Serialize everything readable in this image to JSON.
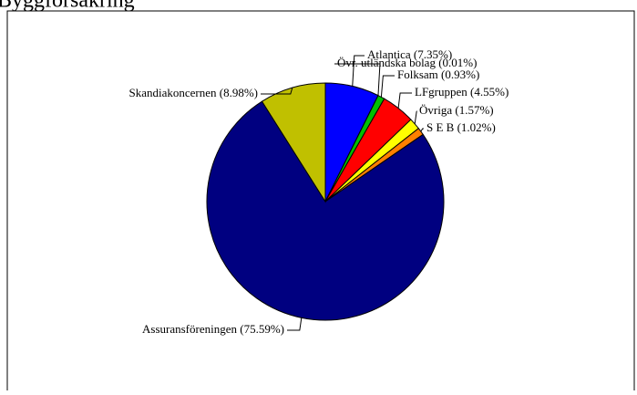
{
  "chart_data": {
    "type": "pie",
    "title": "Byggförsäkring",
    "categories": [
      "Atlantica",
      "Övr. utländska bolag",
      "Folksam",
      "LFgruppen",
      "Övriga",
      "S E B",
      "Assuransföreningen",
      "Skandiakoncernen"
    ],
    "values": [
      7.35,
      0.01,
      0.93,
      4.55,
      1.57,
      1.02,
      75.59,
      8.98
    ],
    "value_labels": [
      "(7.35%)",
      "(0.01%)",
      "(0.93%)",
      "(4.55%)",
      "(1.57%)",
      "(1.02%)",
      "(75.59%)",
      "(8.98%)"
    ],
    "colors": [
      "#0000ff",
      "#ff00ff",
      "#00c000",
      "#ff0000",
      "#ffff00",
      "#ff8000",
      "#000080",
      "#c0c000"
    ]
  }
}
